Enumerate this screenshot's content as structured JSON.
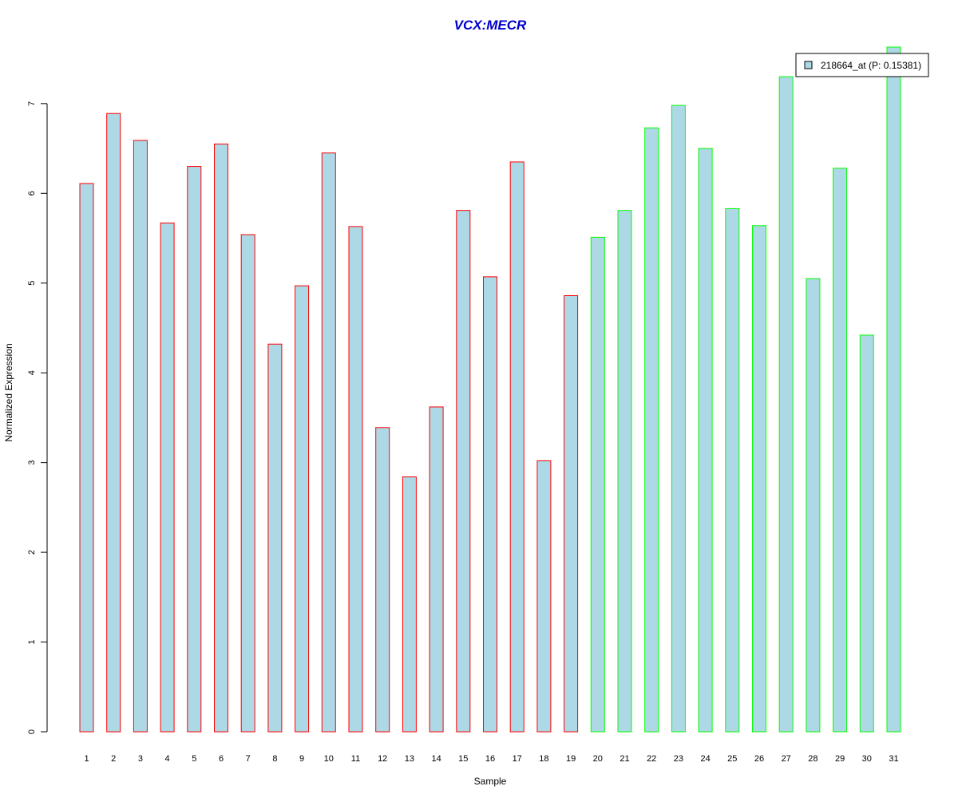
{
  "chart_data": {
    "type": "bar",
    "title": "VCX:MECR",
    "xlabel": "Sample",
    "ylabel": "Normalized Expression",
    "categories": [
      "1",
      "2",
      "3",
      "4",
      "5",
      "6",
      "7",
      "8",
      "9",
      "10",
      "11",
      "12",
      "13",
      "14",
      "15",
      "16",
      "17",
      "18",
      "19",
      "20",
      "21",
      "22",
      "23",
      "24",
      "25",
      "26",
      "27",
      "28",
      "29",
      "30",
      "31"
    ],
    "series": [
      {
        "name": "218664_at (P: 0.15381)",
        "values": [
          6.11,
          6.89,
          6.59,
          5.67,
          6.3,
          6.55,
          5.54,
          4.32,
          4.97,
          6.45,
          5.63,
          3.39,
          2.84,
          3.62,
          5.81,
          5.07,
          6.35,
          3.02,
          4.86,
          5.51,
          5.81,
          6.73,
          6.98,
          6.5,
          5.83,
          5.64,
          7.3,
          5.05,
          6.28,
          4.42,
          7.63
        ]
      }
    ],
    "groups": [
      "red",
      "red",
      "red",
      "red",
      "red",
      "red",
      "red",
      "red",
      "red",
      "red",
      "red",
      "red",
      "red",
      "red",
      "red",
      "red",
      "red",
      "red",
      "red",
      "green",
      "green",
      "green",
      "green",
      "green",
      "green",
      "green",
      "green",
      "green",
      "green",
      "green",
      "green"
    ],
    "yticks": [
      0,
      1,
      2,
      3,
      4,
      5,
      6,
      7
    ],
    "ylim": [
      0,
      7.63
    ],
    "grid": false,
    "legend_position": "top-right",
    "colors": {
      "bar_fill": "#add8e6",
      "group_red": "#ff0000",
      "group_green": "#00ff00",
      "title": "#0000cd",
      "axis": "#000000"
    }
  }
}
